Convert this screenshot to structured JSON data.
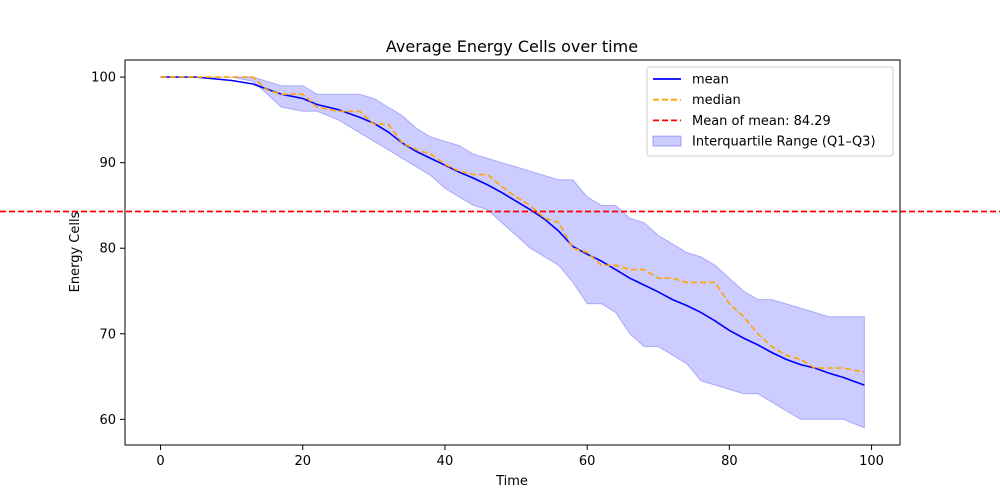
{
  "chart_data": {
    "type": "line",
    "title": "Average Energy Cells over time",
    "xlabel": "Time",
    "ylabel": "Energy Cells",
    "xlim": [
      -5,
      104
    ],
    "ylim": [
      57,
      102
    ],
    "xticks": [
      0,
      20,
      40,
      60,
      80,
      100
    ],
    "yticks": [
      60,
      70,
      80,
      90,
      100
    ],
    "grid": false,
    "legend_position": "top-right",
    "x": [
      0,
      5,
      10,
      13,
      15,
      17,
      20,
      22,
      25,
      28,
      30,
      32,
      34,
      36,
      38,
      40,
      42,
      44,
      46,
      48,
      50,
      52,
      54,
      56,
      58,
      60,
      62,
      64,
      66,
      68,
      70,
      72,
      74,
      76,
      78,
      80,
      82,
      84,
      86,
      88,
      90,
      92,
      94,
      96,
      99
    ],
    "series": [
      {
        "name": "mean",
        "color": "#0000ff",
        "style": "solid",
        "values": [
          100,
          100,
          99.6,
          99.2,
          98.6,
          98.0,
          97.5,
          96.8,
          96.2,
          95.3,
          94.6,
          93.6,
          92.3,
          91.3,
          90.5,
          89.7,
          88.9,
          88.2,
          87.4,
          86.5,
          85.5,
          84.5,
          83.4,
          82.0,
          80.2,
          79.3,
          78.5,
          77.5,
          76.5,
          75.7,
          74.9,
          74.0,
          73.3,
          72.5,
          71.5,
          70.4,
          69.5,
          68.7,
          67.8,
          67.0,
          66.4,
          66.0,
          65.4,
          64.9,
          64.0
        ]
      },
      {
        "name": "median",
        "color": "#ffa500",
        "style": "dashed",
        "values": [
          100,
          100,
          100,
          100,
          98.5,
          98.0,
          98.0,
          96.5,
          96.0,
          96.0,
          94.5,
          94.5,
          92.3,
          91.5,
          91.0,
          89.8,
          89.0,
          88.6,
          88.6,
          87.2,
          86.0,
          85.0,
          83.5,
          83.0,
          80.0,
          79.5,
          78.0,
          78.0,
          77.5,
          77.5,
          76.5,
          76.5,
          76.0,
          76.0,
          76.0,
          73.5,
          72.0,
          70.0,
          68.5,
          67.5,
          67.0,
          66.0,
          66.0,
          66.0,
          65.5
        ]
      }
    ],
    "hline": {
      "name": "Mean of mean: 84.29",
      "value": 84.29,
      "color": "#ff0000",
      "style": "dashed"
    },
    "band": {
      "name": "Interquartile Range (Q1–Q3)",
      "color": "#0000ff",
      "opacity": 0.2,
      "q1": [
        100,
        100,
        100,
        99.5,
        98.0,
        96.5,
        96.0,
        96.0,
        95.0,
        93.5,
        92.5,
        91.5,
        90.5,
        89.5,
        88.5,
        87.0,
        86.0,
        85.0,
        84.5,
        83.0,
        81.5,
        80.0,
        79.0,
        78.0,
        76.0,
        73.5,
        73.5,
        72.5,
        70.0,
        68.5,
        68.5,
        67.5,
        66.5,
        64.5,
        64.0,
        63.5,
        63.0,
        63.0,
        62.0,
        61.0,
        60.0,
        60.0,
        60.0,
        60.0,
        59.0
      ],
      "q3": [
        100,
        100,
        100,
        100,
        99.5,
        99.0,
        99.0,
        98.0,
        98.0,
        98.0,
        97.5,
        96.5,
        95.5,
        94.0,
        93.0,
        92.5,
        92.0,
        91.0,
        90.5,
        90.0,
        89.5,
        89.0,
        88.5,
        88.0,
        88.0,
        86.0,
        85.0,
        85.0,
        83.5,
        83.0,
        81.5,
        80.5,
        79.5,
        79.0,
        78.0,
        76.5,
        75.0,
        74.0,
        74.0,
        73.5,
        73.0,
        72.5,
        72.0,
        72.0,
        72.0
      ]
    }
  }
}
